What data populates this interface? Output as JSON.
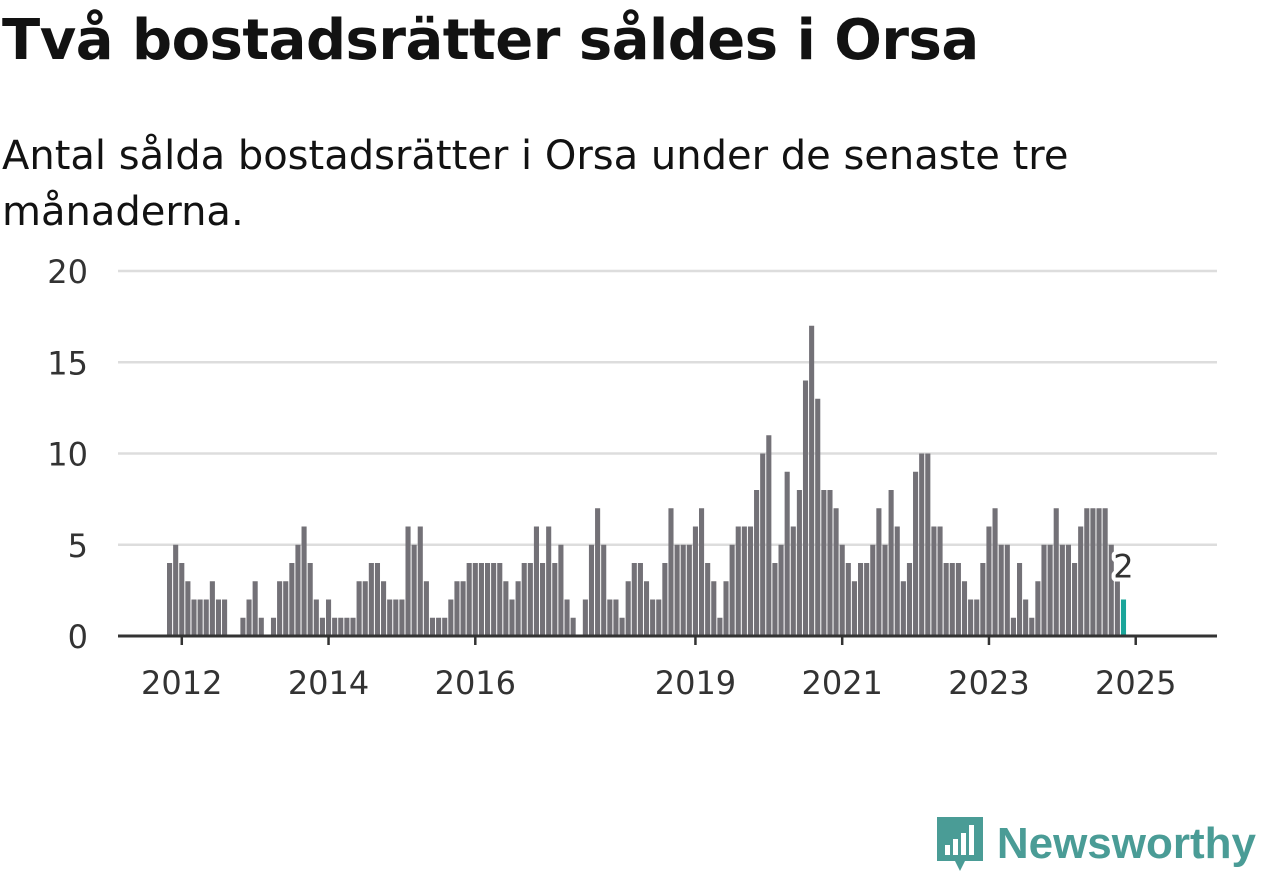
{
  "title": "Två bostadsrätter såldes i Orsa",
  "subtitle": "Antal sålda bostadsrätter i Orsa under de senaste tre månaderna.",
  "brand": "Newsworthy",
  "colors": {
    "bar": "#737177",
    "highlight": "#1aa59a",
    "grid": "#dddddd",
    "axis": "#333333",
    "brand": "#4a9c96"
  },
  "chart_data": {
    "type": "bar",
    "title": "Två bostadsrätter såldes i Orsa",
    "subtitle": "Antal sålda bostadsrätter i Orsa under de senaste tre månaderna.",
    "xlabel": "",
    "ylabel": "",
    "ylim": [
      0,
      20
    ],
    "yticks": [
      0,
      5,
      10,
      15,
      20
    ],
    "xticks": [
      "2012",
      "2014",
      "2016",
      "2019",
      "2021",
      "2023",
      "2025"
    ],
    "grid": true,
    "legend": "none",
    "start": "2011-11",
    "frequency": "monthly",
    "values": [
      4,
      5,
      4,
      3,
      2,
      2,
      2,
      3,
      2,
      2,
      0,
      0,
      1,
      2,
      3,
      1,
      0,
      1,
      3,
      3,
      4,
      5,
      6,
      4,
      2,
      1,
      2,
      1,
      1,
      1,
      1,
      3,
      3,
      4,
      4,
      3,
      2,
      2,
      2,
      6,
      5,
      6,
      3,
      1,
      1,
      1,
      2,
      3,
      3,
      4,
      4,
      4,
      4,
      4,
      4,
      3,
      2,
      3,
      4,
      4,
      6,
      4,
      6,
      4,
      5,
      2,
      1,
      0,
      2,
      5,
      7,
      5,
      2,
      2,
      1,
      3,
      4,
      4,
      3,
      2,
      2,
      4,
      7,
      5,
      5,
      5,
      6,
      7,
      4,
      3,
      1,
      3,
      5,
      6,
      6,
      6,
      8,
      10,
      11,
      4,
      5,
      9,
      6,
      8,
      14,
      17,
      13,
      8,
      8,
      7,
      5,
      4,
      3,
      4,
      4,
      5,
      7,
      5,
      8,
      6,
      3,
      4,
      9,
      10,
      10,
      6,
      6,
      4,
      4,
      4,
      3,
      2,
      2,
      4,
      6,
      7,
      5,
      5,
      1,
      4,
      2,
      1,
      3,
      5,
      5,
      7,
      5,
      5,
      4,
      6,
      7,
      7,
      7,
      7,
      5,
      3,
      2
    ],
    "highlight_last": true,
    "annotation": "2"
  }
}
